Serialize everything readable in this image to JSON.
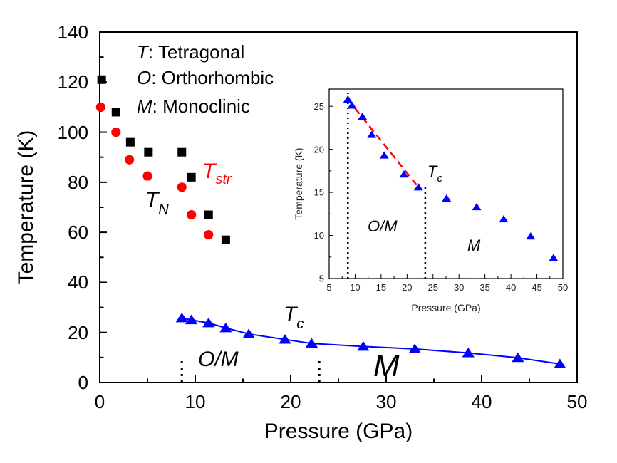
{
  "chart_data": [
    {
      "type": "scatter",
      "xlabel": "Pressure (GPa)",
      "ylabel": "Temperature (K)",
      "xlim": [
        0,
        50
      ],
      "ylim": [
        0,
        140
      ],
      "xticks": [
        "0",
        "10",
        "20",
        "30",
        "40",
        "50"
      ],
      "yticks": [
        "0",
        "20",
        "40",
        "60",
        "80",
        "100",
        "120",
        "140"
      ],
      "legend_text": [
        {
          "italic": "T",
          "rest": ": Tetragonal"
        },
        {
          "italic": "O",
          "rest": ": Orthorhombic"
        },
        {
          "italic": "M",
          "rest": ": Monoclinic"
        }
      ],
      "annotations": {
        "tstr_main": "T",
        "tstr_sub": "str",
        "tn_main": "T",
        "tn_sub": "N",
        "tc_main": "T",
        "tc_sub": "c",
        "om": "O/M",
        "m": "M"
      },
      "series": [
        {
          "marker": "square",
          "color": "#000000",
          "x": [
            0.2,
            1.7,
            3.2,
            5.1,
            8.6,
            9.6,
            11.4,
            13.2
          ],
          "y": [
            121,
            108,
            96,
            92,
            92,
            82,
            67,
            57
          ]
        },
        {
          "marker": "circle",
          "color": "#ff0000",
          "x": [
            0.1,
            1.7,
            3.1,
            5.0,
            8.6,
            9.6,
            11.4
          ],
          "y": [
            110,
            100,
            89,
            82.5,
            78,
            67,
            59
          ]
        },
        {
          "marker": "triangle",
          "color": "#0000ff",
          "line": true,
          "x": [
            8.6,
            9.6,
            11.4,
            13.2,
            15.6,
            19.4,
            22.2,
            27.6,
            33.0,
            38.6,
            43.8,
            48.2
          ],
          "y": [
            25.8,
            25.0,
            23.8,
            21.8,
            19.4,
            17.2,
            15.6,
            14.4,
            13.4,
            11.8,
            9.9,
            7.4
          ]
        }
      ],
      "vlines": [
        8.6,
        23.0
      ]
    },
    {
      "type": "scatter",
      "xlabel": "Pressure (GPa)",
      "ylabel": "Temperature (K)",
      "xlim": [
        5,
        50
      ],
      "ylim": [
        5,
        27
      ],
      "xticks": [
        "5",
        "10",
        "15",
        "20",
        "25",
        "30",
        "35",
        "40",
        "45",
        "50"
      ],
      "yticks": [
        "5",
        "10",
        "15",
        "20",
        "25"
      ],
      "annotations": {
        "tc_main": "T",
        "tc_sub": "c",
        "om": "O/M",
        "m": "M"
      },
      "series": [
        {
          "marker": "triangle",
          "color": "#0000ff",
          "x": [
            8.6,
            9.4,
            11.4,
            13.2,
            15.6,
            19.4,
            22.2,
            27.6,
            33.4,
            38.6,
            43.8,
            48.2
          ],
          "y": [
            25.8,
            25.1,
            23.8,
            21.7,
            19.3,
            17.1,
            15.6,
            14.3,
            13.3,
            11.9,
            9.9,
            7.4
          ]
        }
      ],
      "fit_line": {
        "color": "#ff0000",
        "x": [
          8.6,
          22.2
        ],
        "y": [
          25.8,
          15.6
        ]
      },
      "vlines": [
        8.6,
        23.5
      ]
    }
  ]
}
